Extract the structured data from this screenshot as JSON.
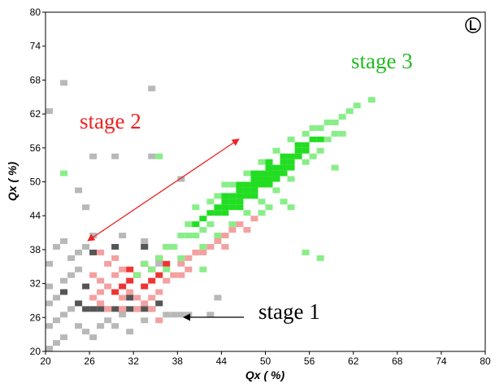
{
  "chart_data": {
    "type": "heatmap-scatter",
    "xlabel": "Qx ( %)",
    "ylabel": "Qx ( %)",
    "xlim": [
      20,
      80
    ],
    "ylim": [
      20,
      80
    ],
    "xticks": [
      20,
      26,
      32,
      38,
      44,
      50,
      56,
      62,
      68,
      74,
      80
    ],
    "yticks": [
      20,
      26,
      32,
      38,
      44,
      50,
      56,
      62,
      68,
      74,
      80
    ],
    "bin": 1,
    "series": [
      {
        "color": "#b8b8b8",
        "x": [
          20,
          21,
          22,
          20,
          21,
          22,
          23,
          20,
          21,
          22,
          23,
          24,
          20,
          21,
          22,
          20,
          24,
          25,
          26,
          27,
          28,
          29,
          30,
          31,
          33,
          36,
          37,
          38,
          39,
          23,
          24,
          25,
          26,
          30,
          33,
          35,
          22,
          34,
          20,
          26,
          34,
          24,
          25,
          29,
          42,
          43,
          38
        ],
        "y": [
          20,
          21,
          22,
          24,
          25,
          26,
          27,
          28,
          29,
          32,
          33,
          34,
          35,
          38,
          39,
          31,
          24,
          23,
          22,
          24,
          25,
          24,
          26,
          23,
          25,
          26,
          26,
          26,
          26,
          36,
          37,
          38,
          40,
          40,
          39,
          35,
          67,
          66,
          62,
          54,
          54,
          48,
          45,
          54,
          26,
          29,
          50
        ]
      },
      {
        "color": "#555555",
        "x": [
          25,
          26,
          27,
          28,
          29,
          30,
          31,
          32,
          33,
          34,
          35,
          24,
          26,
          29,
          31,
          22,
          25,
          33
        ],
        "y": [
          27,
          27,
          27,
          27,
          27,
          27,
          27,
          27,
          27,
          27,
          28,
          28,
          37,
          38,
          29,
          30,
          31,
          38
        ]
      },
      {
        "color": "#f4a0a0",
        "x": [
          27,
          28,
          29,
          30,
          31,
          32,
          33,
          34,
          35,
          36,
          37,
          38,
          39,
          40,
          41,
          42,
          43,
          44,
          45,
          46,
          26,
          27,
          28,
          30,
          36,
          38,
          39,
          30,
          32,
          34,
          27,
          28,
          26,
          35,
          44,
          47,
          48,
          27,
          29
        ],
        "y": [
          30,
          31,
          33,
          34,
          30,
          29,
          28,
          29,
          30,
          32,
          33,
          35,
          36,
          37,
          37,
          38,
          39,
          40,
          41,
          42,
          29,
          28,
          27,
          29,
          38,
          33,
          34,
          27,
          27,
          27,
          32,
          35,
          33,
          25,
          38,
          41,
          43,
          37,
          36
        ]
      },
      {
        "color": "#ee3333",
        "x": [
          33,
          34,
          35,
          32,
          31,
          30,
          34,
          29,
          33,
          35,
          36,
          31
        ],
        "y": [
          35,
          34,
          36,
          33,
          32,
          31,
          32,
          30,
          31,
          33,
          35,
          34
        ]
      },
      {
        "color": "#88ee88",
        "x": [
          36,
          37,
          38,
          39,
          39,
          40,
          41,
          42,
          43,
          45,
          47,
          49,
          51,
          53,
          55,
          56,
          57,
          58,
          59,
          60,
          61,
          62,
          64,
          57,
          55,
          53,
          51,
          49,
          47,
          45,
          43,
          41,
          38,
          36,
          34,
          35,
          33,
          32,
          58,
          59,
          60,
          56,
          40,
          42,
          44,
          59,
          53,
          55,
          41,
          57,
          49,
          50,
          52,
          35,
          22
        ],
        "y": [
          38,
          38,
          40,
          40,
          42,
          40,
          41,
          42,
          47,
          49,
          51,
          53,
          55,
          57,
          58,
          59,
          59,
          60,
          60,
          61,
          62,
          63,
          64,
          55,
          53,
          50,
          48,
          46,
          44,
          42,
          40,
          38,
          36,
          34,
          34,
          36,
          35,
          33,
          57,
          58,
          58,
          54,
          45,
          46,
          49,
          52,
          45,
          37,
          34,
          36,
          44,
          45,
          46,
          54,
          51
        ]
      },
      {
        "color": "#22dd22",
        "x": [
          42,
          43,
          43,
          44,
          44,
          45,
          45,
          46,
          46,
          47,
          47,
          48,
          48,
          49,
          49,
          50,
          50,
          51,
          51,
          52,
          52,
          53,
          53,
          54,
          54,
          55,
          55,
          56,
          57,
          46,
          48,
          50,
          44,
          45,
          47,
          49,
          51,
          52,
          53,
          50,
          48,
          46,
          41,
          40,
          44,
          46,
          48,
          50,
          52,
          54
        ],
        "y": [
          44,
          44,
          45,
          45,
          46,
          46,
          47,
          47,
          48,
          48,
          49,
          49,
          50,
          50,
          51,
          51,
          52,
          52,
          51,
          53,
          52,
          54,
          53,
          55,
          54,
          56,
          55,
          57,
          57,
          46,
          48,
          50,
          44,
          45,
          47,
          49,
          50,
          51,
          52,
          49,
          47,
          45,
          43,
          42,
          47,
          49,
          51,
          53,
          54,
          56
        ]
      }
    ],
    "annotations": [
      {
        "text": "stage 3",
        "color": "#22bb22"
      },
      {
        "text": "stage 2",
        "color": "#ee2222"
      },
      {
        "text": "stage 1",
        "color": "#000000"
      }
    ]
  }
}
